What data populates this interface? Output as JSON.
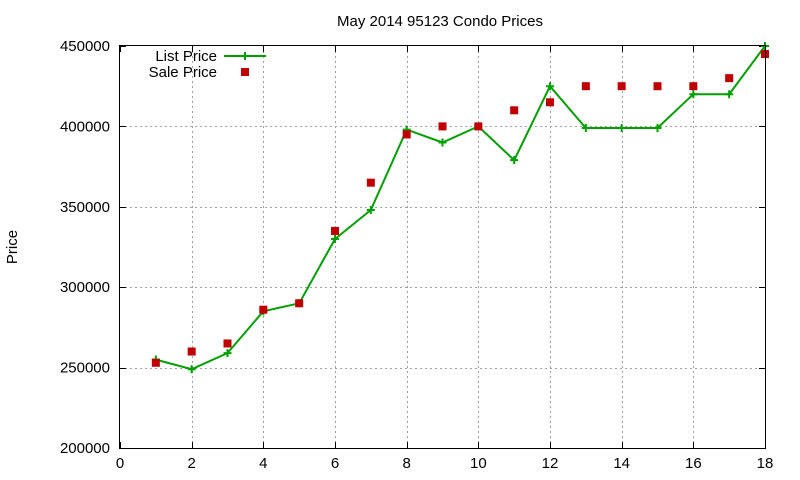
{
  "chart_data": {
    "type": "line",
    "title": "May 2014 95123 Condo Prices",
    "xlabel": "",
    "ylabel": "Price",
    "xlim": [
      0,
      18
    ],
    "ylim": [
      200000,
      450000
    ],
    "x_ticks": [
      "0",
      "2",
      "4",
      "6",
      "8",
      "10",
      "12",
      "14",
      "16",
      "18"
    ],
    "y_ticks": [
      "200000",
      "250000",
      "300000",
      "350000",
      "400000",
      "450000"
    ],
    "grid": true,
    "legend_position": "top-left",
    "series": [
      {
        "name": "List Price",
        "style": "line-with-plus-markers",
        "color": "#00a000",
        "x": [
          1,
          2,
          3,
          4,
          5,
          6,
          7,
          8,
          9,
          10,
          11,
          12,
          13,
          14,
          15,
          16,
          17,
          18
        ],
        "y": [
          255000,
          249000,
          259000,
          285000,
          290000,
          330000,
          348000,
          398000,
          390000,
          400000,
          379000,
          425000,
          399000,
          399000,
          399000,
          420000,
          420000,
          450000
        ]
      },
      {
        "name": "Sale Price",
        "style": "square-markers",
        "color": "#c00000",
        "x": [
          1,
          2,
          3,
          4,
          5,
          6,
          7,
          8,
          9,
          10,
          11,
          12,
          13,
          14,
          15,
          16,
          17,
          18
        ],
        "y": [
          253000,
          260000,
          265000,
          286000,
          290000,
          335000,
          365000,
          395000,
          400000,
          400000,
          410000,
          415000,
          425000,
          425000,
          425000,
          425000,
          430000,
          445000
        ]
      }
    ]
  }
}
